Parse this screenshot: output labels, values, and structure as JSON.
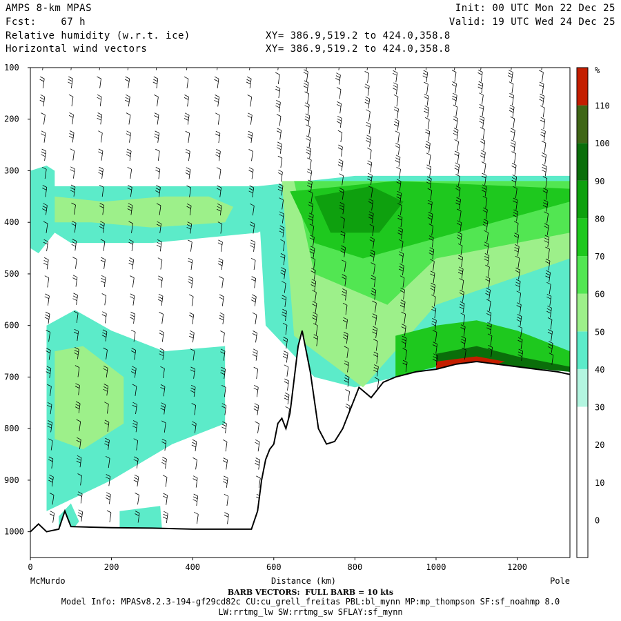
{
  "header": {
    "title": "AMPS 8-km MPAS",
    "forecast_label": "Fcst:",
    "forecast_value": "67 h",
    "field1": "Relative humidity (w.r.t. ice)",
    "field2": "Horizontal wind vectors",
    "init": "Init: 00 UTC Mon 22 Dec 25",
    "valid": "Valid: 19 UTC Wed 24 Dec 25",
    "xy1": "XY= 386.9,519.2 to 424.0,358.8",
    "xy2": "XY= 386.9,519.2 to 424.0,358.8"
  },
  "footer": {
    "barb_note": "BARB VECTORS:  FULL BARB = 10 kts",
    "model_info": "Model Info: MPASv8.2.3-194-gf29cd82c CU:cu_grell_freitas PBL:bl_mynn MP:mp_thompson SF:sf_noahmp 8.0",
    "model_info2": "LW:rrtmg_lw SW:rrtmg_sw SFLAY:sf_mynn"
  },
  "chart_data": {
    "type": "heatmap",
    "xlabel": "Distance (km)",
    "x_start_label": "McMurdo",
    "x_end_label": "Pole",
    "xlim": [
      0,
      1330
    ],
    "ylim": [
      1050,
      100
    ],
    "x_ticks": [
      0,
      200,
      400,
      600,
      800,
      1000,
      1200
    ],
    "y_ticks": [
      100,
      200,
      300,
      400,
      500,
      600,
      700,
      800,
      900,
      1000
    ],
    "colorbar": {
      "unit": "%",
      "levels": [
        0,
        10,
        20,
        30,
        40,
        50,
        60,
        70,
        80,
        90,
        100,
        110
      ],
      "colors": [
        "#ffffff",
        "#ffffff",
        "#ffffff",
        "#ffffff",
        "#b3f5e0",
        "#5cebc9",
        "#9df08a",
        "#52e652",
        "#1ec81e",
        "#0ea00e",
        "#0a6e0a",
        "#3f6616",
        "#c41e00"
      ]
    },
    "terrain": [
      [
        0,
        1000
      ],
      [
        20,
        985
      ],
      [
        40,
        1000
      ],
      [
        70,
        995
      ],
      [
        85,
        960
      ],
      [
        100,
        990
      ],
      [
        200,
        992
      ],
      [
        300,
        993
      ],
      [
        400,
        995
      ],
      [
        500,
        995
      ],
      [
        545,
        995
      ],
      [
        560,
        960
      ],
      [
        570,
        900
      ],
      [
        580,
        860
      ],
      [
        590,
        840
      ],
      [
        600,
        830
      ],
      [
        610,
        790
      ],
      [
        620,
        780
      ],
      [
        630,
        800
      ],
      [
        640,
        770
      ],
      [
        660,
        640
      ],
      [
        670,
        610
      ],
      [
        690,
        690
      ],
      [
        710,
        800
      ],
      [
        730,
        830
      ],
      [
        750,
        825
      ],
      [
        770,
        800
      ],
      [
        790,
        760
      ],
      [
        810,
        720
      ],
      [
        840,
        740
      ],
      [
        870,
        710
      ],
      [
        900,
        700
      ],
      [
        950,
        690
      ],
      [
        1000,
        685
      ],
      [
        1050,
        675
      ],
      [
        1100,
        670
      ],
      [
        1150,
        675
      ],
      [
        1200,
        680
      ],
      [
        1250,
        685
      ],
      [
        1300,
        690
      ],
      [
        1330,
        695
      ]
    ],
    "rh_regions": [
      {
        "level": 40,
        "points": [
          [
            0,
            300
          ],
          [
            40,
            290
          ],
          [
            60,
            300
          ],
          [
            60,
            420
          ],
          [
            20,
            460
          ],
          [
            0,
            450
          ]
        ]
      },
      {
        "level": 40,
        "points": [
          [
            40,
            330
          ],
          [
            560,
            330
          ],
          [
            620,
            350
          ],
          [
            640,
            390
          ],
          [
            560,
            420
          ],
          [
            300,
            440
          ],
          [
            100,
            440
          ],
          [
            40,
            410
          ]
        ]
      },
      {
        "level": 50,
        "points": [
          [
            60,
            350
          ],
          [
            180,
            360
          ],
          [
            330,
            350
          ],
          [
            440,
            350
          ],
          [
            500,
            370
          ],
          [
            480,
            400
          ],
          [
            300,
            410
          ],
          [
            150,
            400
          ],
          [
            60,
            400
          ]
        ]
      },
      {
        "level": 40,
        "points": [
          [
            40,
            600
          ],
          [
            110,
            570
          ],
          [
            200,
            610
          ],
          [
            330,
            650
          ],
          [
            480,
            640
          ],
          [
            480,
            790
          ],
          [
            350,
            830
          ],
          [
            200,
            900
          ],
          [
            40,
            960
          ]
        ]
      },
      {
        "level": 50,
        "points": [
          [
            60,
            650
          ],
          [
            130,
            640
          ],
          [
            230,
            700
          ],
          [
            230,
            790
          ],
          [
            130,
            840
          ],
          [
            60,
            820
          ]
        ]
      },
      {
        "level": 40,
        "points": [
          [
            220,
            960
          ],
          [
            320,
            950
          ],
          [
            330,
            1050
          ],
          [
            220,
            1050
          ]
        ]
      },
      {
        "level": 40,
        "points": [
          [
            560,
            330
          ],
          [
            800,
            310
          ],
          [
            1330,
            310
          ],
          [
            1330,
            690
          ],
          [
            1200,
            680
          ],
          [
            1100,
            670
          ],
          [
            1000,
            685
          ],
          [
            900,
            700
          ],
          [
            800,
            720
          ],
          [
            700,
            700
          ],
          [
            580,
            600
          ]
        ]
      },
      {
        "level": 50,
        "points": [
          [
            620,
            320
          ],
          [
            1330,
            320
          ],
          [
            1330,
            470
          ],
          [
            1000,
            560
          ],
          [
            820,
            720
          ],
          [
            650,
            620
          ]
        ]
      },
      {
        "level": 60,
        "points": [
          [
            650,
            320
          ],
          [
            1330,
            320
          ],
          [
            1330,
            420
          ],
          [
            1000,
            470
          ],
          [
            880,
            560
          ],
          [
            700,
            500
          ]
        ]
      },
      {
        "level": 70,
        "points": [
          [
            640,
            340
          ],
          [
            900,
            320
          ],
          [
            1330,
            335
          ],
          [
            1330,
            360
          ],
          [
            1050,
            420
          ],
          [
            820,
            470
          ],
          [
            700,
            440
          ]
        ]
      },
      {
        "level": 80,
        "points": [
          [
            700,
            350
          ],
          [
            840,
            330
          ],
          [
            920,
            360
          ],
          [
            860,
            420
          ],
          [
            740,
            420
          ]
        ]
      },
      {
        "level": 70,
        "points": [
          [
            900,
            620
          ],
          [
            1000,
            600
          ],
          [
            1100,
            590
          ],
          [
            1200,
            610
          ],
          [
            1330,
            650
          ],
          [
            1330,
            690
          ],
          [
            1150,
            670
          ],
          [
            1000,
            680
          ],
          [
            900,
            700
          ]
        ]
      },
      {
        "level": 90,
        "points": [
          [
            1000,
            655
          ],
          [
            1100,
            640
          ],
          [
            1200,
            660
          ],
          [
            1330,
            680
          ],
          [
            1330,
            690
          ],
          [
            1200,
            680
          ],
          [
            1100,
            670
          ],
          [
            1000,
            685
          ]
        ]
      },
      {
        "level": 110,
        "points": [
          [
            1000,
            670
          ],
          [
            1100,
            660
          ],
          [
            1170,
            670
          ],
          [
            1150,
            675
          ],
          [
            1100,
            670
          ],
          [
            1000,
            685
          ]
        ]
      },
      {
        "level": 40,
        "points": [
          [
            70,
            970
          ],
          [
            100,
            945
          ],
          [
            120,
            980
          ],
          [
            100,
            1000
          ],
          [
            70,
            1000
          ]
        ]
      }
    ],
    "wind_columns_km": [
      30,
      100,
      170,
      240,
      310,
      385,
      460,
      540,
      610,
      680,
      760,
      830,
      900,
      975,
      1045,
      1110,
      1185,
      1260
    ],
    "wind_lean_deg": 8,
    "barb_count_per_column": 26
  }
}
